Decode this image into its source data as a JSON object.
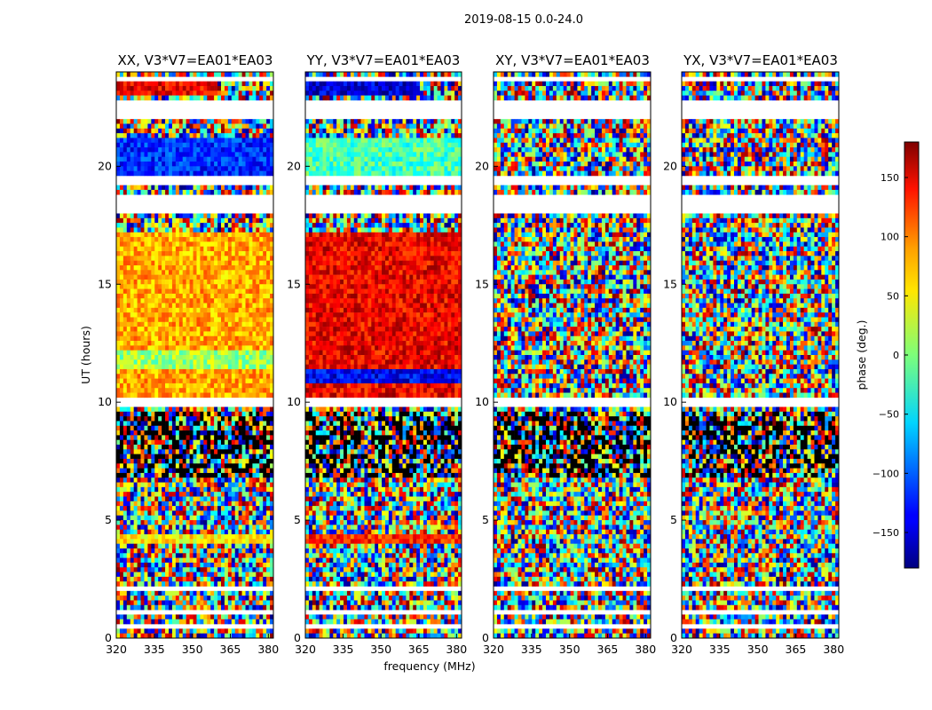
{
  "figure_title": "2019-08-15 0.0-24.0",
  "chart_data": [
    {
      "type": "heatmap",
      "title": "XX, V3*V7=EA01*EA03",
      "xlabel": "",
      "ylabel": "UT (hours)",
      "xlim": [
        320,
        382
      ],
      "ylim": [
        0,
        24
      ],
      "xticks": [
        320,
        335,
        350,
        365,
        380
      ],
      "yticks": [
        0,
        5,
        10,
        15,
        20
      ],
      "coherent_phase_blocks": [
        {
          "ut": [
            23.0,
            23.5
          ],
          "freq": [
            320,
            360
          ],
          "phase": 140
        },
        {
          "ut": [
            19.6,
            21.2
          ],
          "freq": [
            320,
            382
          ],
          "phase": -120
        },
        {
          "ut": [
            10.2,
            17.2
          ],
          "freq": [
            320,
            382
          ],
          "phase": 75
        },
        {
          "ut": [
            11.4,
            12.2
          ],
          "freq": [
            320,
            382
          ],
          "phase": 10
        },
        {
          "ut": [
            4.1,
            4.4
          ],
          "freq": [
            320,
            382
          ],
          "phase": 50
        }
      ]
    },
    {
      "type": "heatmap",
      "title": "YY, V3*V7=EA01*EA03",
      "xlabel": "frequency (MHz)",
      "ylabel": "",
      "xlim": [
        320,
        382
      ],
      "ylim": [
        0,
        24
      ],
      "xticks": [
        320,
        335,
        350,
        365,
        380
      ],
      "yticks": [
        0,
        5,
        10,
        15,
        20
      ],
      "coherent_phase_blocks": [
        {
          "ut": [
            23.0,
            23.5
          ],
          "freq": [
            320,
            365
          ],
          "phase": -150
        },
        {
          "ut": [
            19.6,
            21.2
          ],
          "freq": [
            320,
            382
          ],
          "phase": -20
        },
        {
          "ut": [
            10.2,
            17.2
          ],
          "freq": [
            320,
            382
          ],
          "phase": 140
        },
        {
          "ut": [
            10.9,
            11.4
          ],
          "freq": [
            320,
            382
          ],
          "phase": -140
        },
        {
          "ut": [
            4.1,
            4.4
          ],
          "freq": [
            320,
            382
          ],
          "phase": 120
        }
      ]
    },
    {
      "type": "heatmap",
      "title": "XY, V3*V7=EA01*EA03",
      "xlabel": "",
      "ylabel": "",
      "xlim": [
        320,
        382
      ],
      "ylim": [
        0,
        24
      ],
      "xticks": [
        320,
        335,
        350,
        365,
        380
      ],
      "yticks": [
        0,
        5,
        10,
        15,
        20
      ],
      "coherent_phase_blocks": []
    },
    {
      "type": "heatmap",
      "title": "YX, V3*V7=EA01*EA03",
      "xlabel": "",
      "ylabel": "",
      "xlim": [
        320,
        382
      ],
      "ylim": [
        0,
        24
      ],
      "xticks": [
        320,
        335,
        350,
        365,
        380
      ],
      "yticks": [
        0,
        5,
        10,
        15,
        20
      ],
      "coherent_phase_blocks": []
    }
  ],
  "colorbar": {
    "label": "phase (deg.)",
    "range": [
      -180,
      180
    ],
    "ticks": [
      150,
      100,
      50,
      0,
      -50,
      -100,
      -150
    ],
    "tick_labels": [
      "150",
      "100",
      "50",
      "0",
      "−50",
      "−100",
      "−150"
    ],
    "colormap": "jet"
  },
  "flagged_ut_gaps": [
    [
      23.7,
      23.8
    ],
    [
      22.0,
      22.7
    ],
    [
      19.2,
      19.6
    ],
    [
      18.0,
      18.7
    ],
    [
      17.2,
      17.25
    ],
    [
      9.75,
      10.2
    ],
    [
      3.9,
      4.05
    ],
    [
      2.1,
      2.3
    ],
    [
      1.0,
      1.25
    ],
    [
      0.45,
      0.5
    ]
  ]
}
